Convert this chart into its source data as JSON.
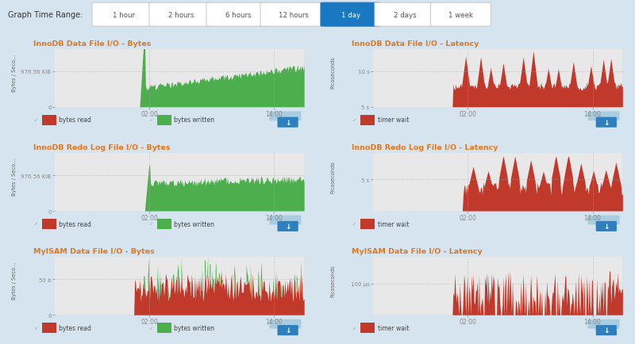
{
  "bg_color": "#d6e4f0",
  "panel_bg": "#ffffff",
  "chart_bg": "#e8e8e8",
  "title_color": "#e07820",
  "green_color": "#4cae4c",
  "red_color": "#c0392b",
  "header_bg": "#d6e4f0",
  "button_active_bg": "#1a78c2",
  "button_inactive_bg": "#ffffff",
  "button_text_active": "#ffffff",
  "button_text_inactive": "#555555",
  "button_border_inactive": "#cccccc",
  "time_buttons": [
    "1 hour",
    "2 hours",
    "6 hours",
    "12 hours",
    "1 day",
    "2 days",
    "1 week"
  ],
  "active_button": 4,
  "graphs": [
    {
      "title": "InnoDB Data File I/O - Bytes",
      "ylabel": "Bytes / Seco...",
      "ytick_labels": [
        "0",
        "976.56 KiB"
      ],
      "xtick_labels": [
        "02:00",
        "14:00"
      ],
      "legend": [
        "bytes read",
        "bytes written"
      ],
      "legend_colors": [
        "#c0392b",
        "#4cae4c"
      ],
      "type": "innodb_bytes",
      "row": 0,
      "col": 0
    },
    {
      "title": "InnoDB Data File I/O - Latency",
      "ylabel": "Picoseconds",
      "ytick_labels": [
        "5 s",
        "10 s"
      ],
      "xtick_labels": [
        "02:00",
        "14:00"
      ],
      "legend": [
        "timer wait"
      ],
      "legend_colors": [
        "#c0392b"
      ],
      "type": "innodb_latency",
      "row": 0,
      "col": 1
    },
    {
      "title": "InnoDB Redo Log File I/O - Bytes",
      "ylabel": "Bytes / Seco...",
      "ytick_labels": [
        "0",
        "976.56 KiB"
      ],
      "xtick_labels": [
        "02:00",
        "14:00"
      ],
      "legend": [
        "bytes read",
        "bytes written"
      ],
      "legend_colors": [
        "#c0392b",
        "#4cae4c"
      ],
      "type": "redo_bytes",
      "row": 1,
      "col": 0
    },
    {
      "title": "InnoDB Redo Log File I/O - Latency",
      "ylabel": "Picoseconds",
      "ytick_labels": [
        "5 s"
      ],
      "xtick_labels": [
        "02:00",
        "14:00"
      ],
      "legend": [
        "timer wait"
      ],
      "legend_colors": [
        "#c0392b"
      ],
      "type": "redo_latency",
      "row": 1,
      "col": 1
    },
    {
      "title": "MyISAM Data File I/O - Bytes",
      "ylabel": "Bytes / Seco...",
      "ytick_labels": [
        "0",
        "50 b"
      ],
      "xtick_labels": [
        "02:00",
        "14:00"
      ],
      "legend": [
        "bytes read",
        "bytes written"
      ],
      "legend_colors": [
        "#c0392b",
        "#4cae4c"
      ],
      "type": "myisam_bytes",
      "row": 2,
      "col": 0
    },
    {
      "title": "MyISAM Data File I/O - Latency",
      "ylabel": "Picoseconds",
      "ytick_labels": [
        "100 μs"
      ],
      "xtick_labels": [
        "02:00",
        "14:00"
      ],
      "legend": [
        "timer wait"
      ],
      "legend_colors": [
        "#c0392b"
      ],
      "type": "myisam_latency",
      "row": 2,
      "col": 1
    }
  ]
}
